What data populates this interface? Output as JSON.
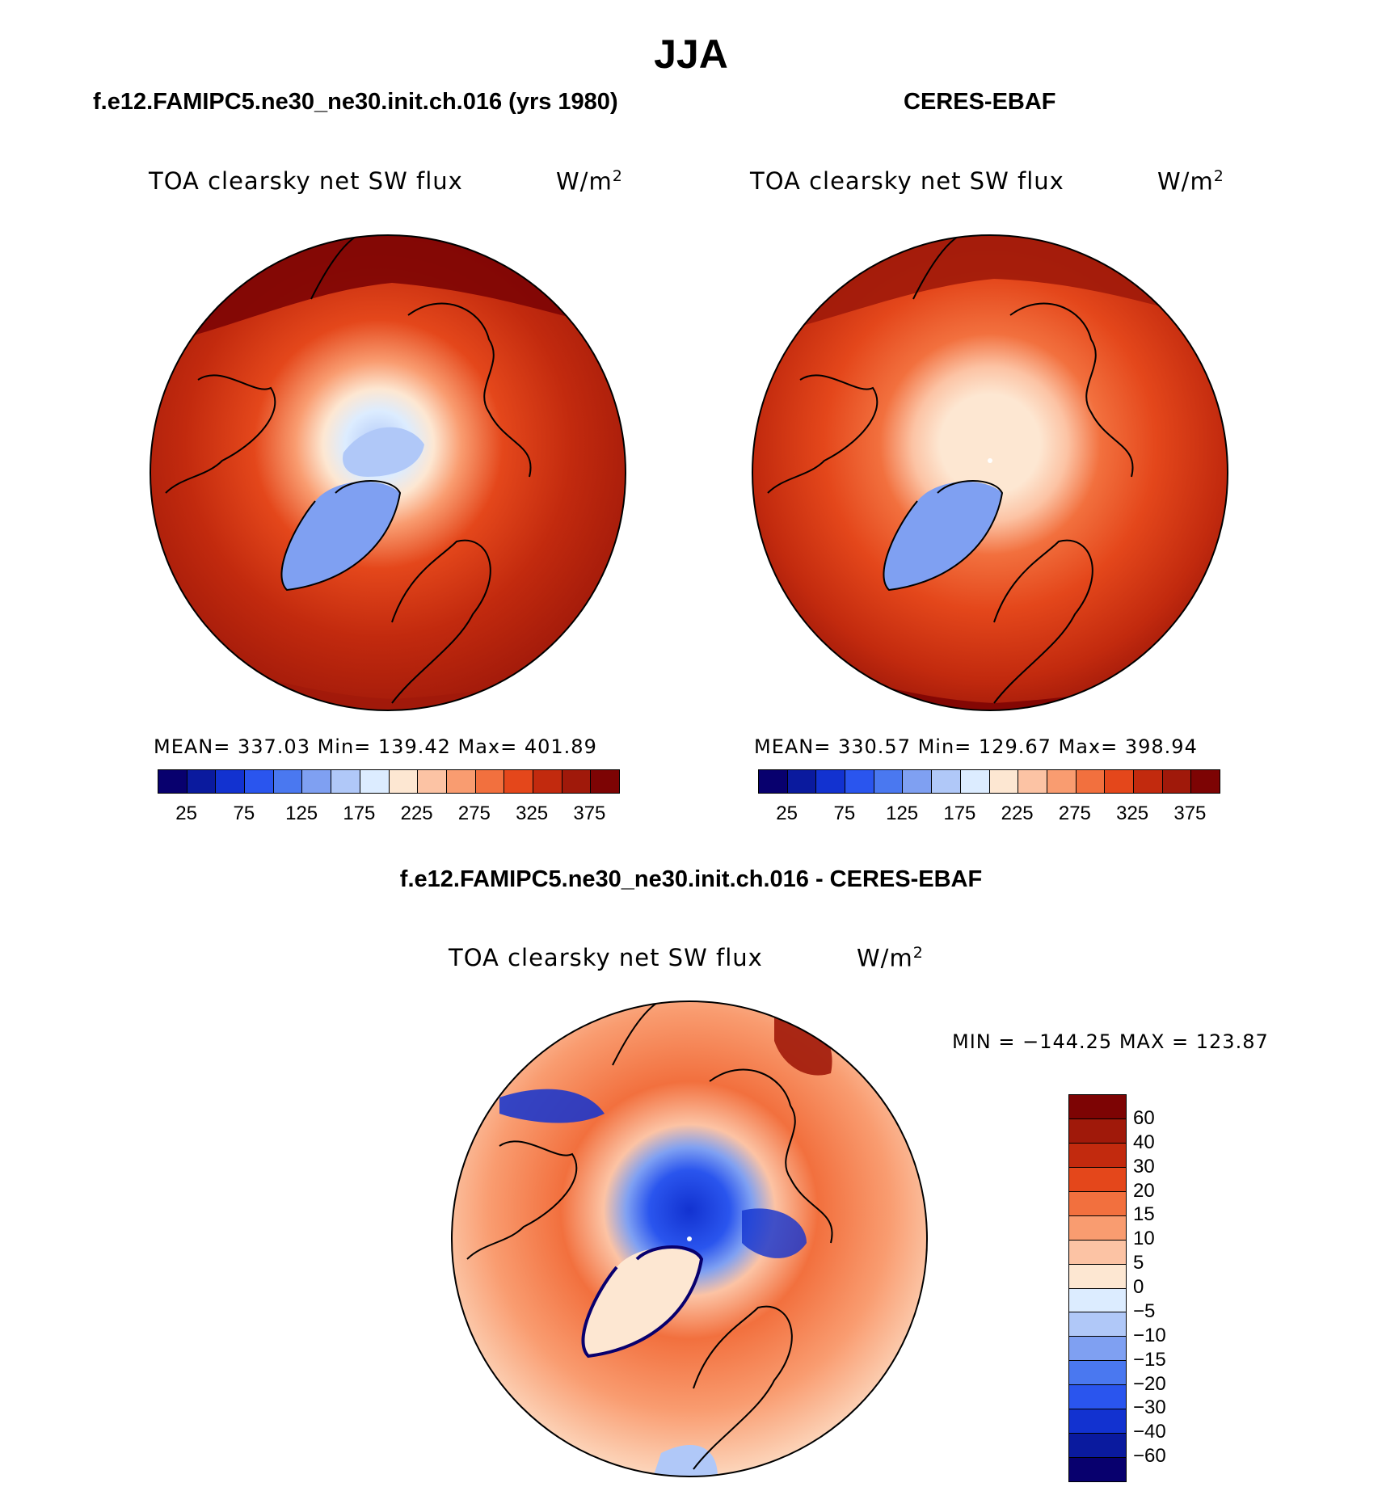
{
  "title": "JJA",
  "panels": [
    {
      "heading": "f.e12.FAMIPC5.ne30_ne30.init.ch.016 (yrs 1980)",
      "variable": "TOA clearsky net SW flux",
      "units": "W/m",
      "units_exp": "2",
      "stats": "MEAN= 337.03   Min= 139.42   Max= 401.89",
      "colorbar_labels": [
        "25",
        "75",
        "125",
        "175",
        "225",
        "275",
        "325",
        "375"
      ]
    },
    {
      "heading": "CERES-EBAF",
      "variable": "TOA clearsky net SW flux",
      "units": "W/m",
      "units_exp": "2",
      "stats": "MEAN= 330.57   Min= 129.67   Max= 398.94",
      "colorbar_labels": [
        "25",
        "75",
        "125",
        "175",
        "225",
        "275",
        "325",
        "375"
      ]
    }
  ],
  "diff": {
    "heading": "f.e12.FAMIPC5.ne30_ne30.init.ch.016 - CERES-EBAF",
    "variable": "TOA clearsky net SW flux",
    "units": "W/m",
    "units_exp": "2",
    "minmax": "MIN = −144.25 MAX = 123.87",
    "colorbar_labels": [
      "60",
      "40",
      "30",
      "20",
      "15",
      "10",
      "5",
      "0",
      "−5",
      "−10",
      "−15",
      "−20",
      "−30",
      "−40",
      "−60"
    ]
  },
  "colors": {
    "abs_scale": [
      "#08006e",
      "#0a1a9e",
      "#1232d0",
      "#2a55ee",
      "#4a78f0",
      "#7fa0f2",
      "#b0c8f8",
      "#dcecff",
      "#fde7d2",
      "#fcc3a4",
      "#f99c70",
      "#f2703e",
      "#e4471b",
      "#c22a0e",
      "#a0190a",
      "#7d0404"
    ],
    "diff_scale": [
      "#08006e",
      "#0a1a9e",
      "#1232d0",
      "#2a55ee",
      "#4a78f0",
      "#7fa0f2",
      "#b0c8f8",
      "#dcecff",
      "#fde7d2",
      "#fcc3a4",
      "#f99c70",
      "#f2703e",
      "#e4471b",
      "#c22a0e",
      "#a0190a",
      "#7d0404"
    ]
  }
}
